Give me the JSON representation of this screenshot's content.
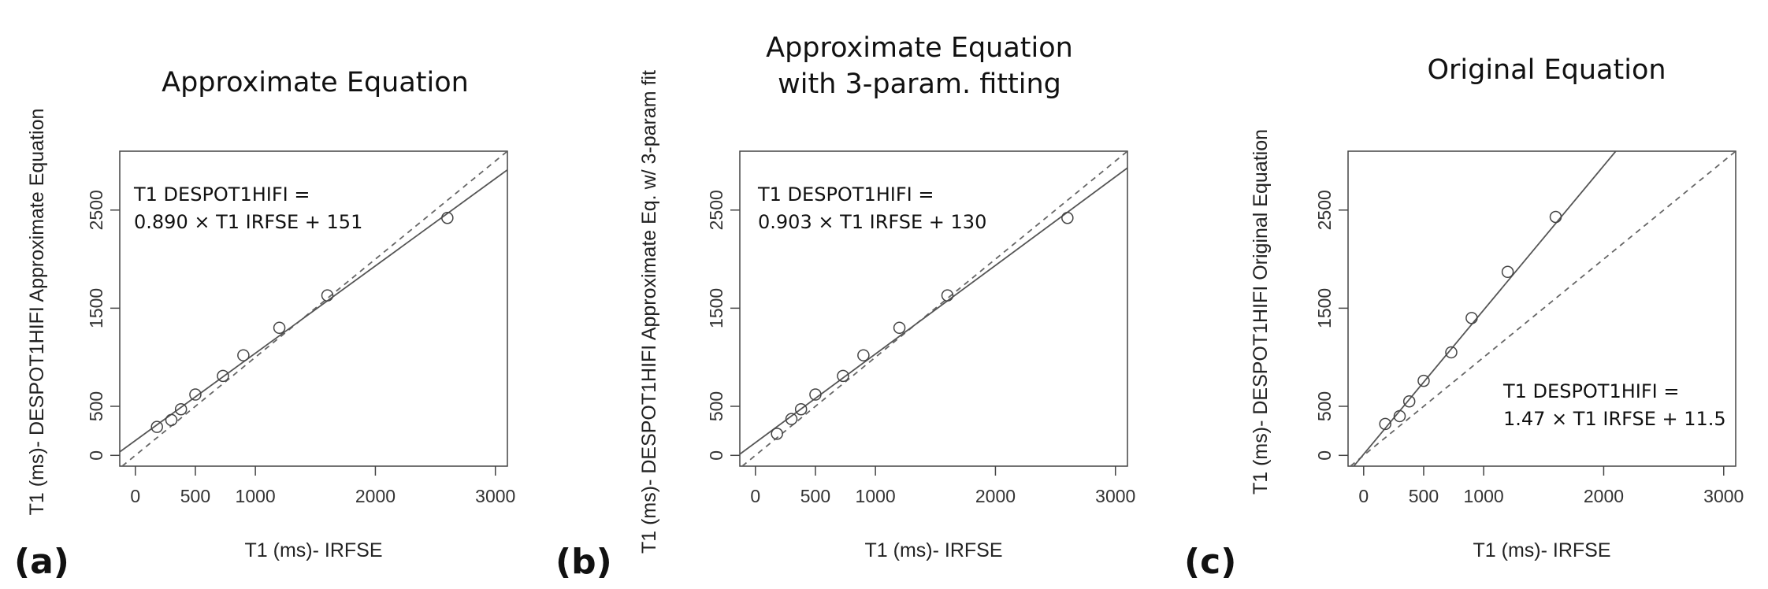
{
  "chart_data": [
    {
      "type": "scatter",
      "panel_label": "(a)",
      "title_lines": [
        "Approximate Equation"
      ],
      "xlabel": "T1 (ms)- IRFSE",
      "ylabel": "T1 (ms)- DESPOT1HIFI Approximate Equation",
      "xlim": [
        -130,
        3100
      ],
      "ylim": [
        -110,
        3100
      ],
      "xticks": [
        0,
        500,
        1000,
        2000,
        3000
      ],
      "yticks": [
        0,
        500,
        1500,
        2500
      ],
      "xtick_labels": [
        "0",
        "500",
        "1000",
        "2000",
        "3000"
      ],
      "ytick_labels": [
        "0",
        "500",
        "1500",
        "2500"
      ],
      "points": [
        [
          180,
          290
        ],
        [
          300,
          360
        ],
        [
          380,
          470
        ],
        [
          500,
          620
        ],
        [
          730,
          810
        ],
        [
          900,
          1020
        ],
        [
          1200,
          1300
        ],
        [
          1600,
          1630
        ],
        [
          2600,
          2420
        ]
      ],
      "fit": {
        "slope": 0.89,
        "intercept": 151
      },
      "identity_line": true,
      "annotation": {
        "lines": [
          "T1 DESPOT1HIFI  =",
          "0.890 × T1 IRFSE  + 151"
        ],
        "position": "top-left"
      }
    },
    {
      "type": "scatter",
      "panel_label": "(b)",
      "title_lines": [
        "Approximate Equation",
        "with 3-param. fitting"
      ],
      "xlabel": "T1 (ms)- IRFSE",
      "ylabel": "T1 (ms)- DESPOT1HIFI Approximate Eq. w/ 3-param fit",
      "xlim": [
        -130,
        3100
      ],
      "ylim": [
        -110,
        3100
      ],
      "xticks": [
        0,
        500,
        1000,
        2000,
        3000
      ],
      "yticks": [
        0,
        500,
        1500,
        2500
      ],
      "xtick_labels": [
        "0",
        "500",
        "1000",
        "2000",
        "3000"
      ],
      "ytick_labels": [
        "0",
        "500",
        "1500",
        "2500"
      ],
      "points": [
        [
          180,
          220
        ],
        [
          300,
          370
        ],
        [
          380,
          470
        ],
        [
          500,
          620
        ],
        [
          730,
          810
        ],
        [
          900,
          1020
        ],
        [
          1200,
          1300
        ],
        [
          1600,
          1630
        ],
        [
          2600,
          2420
        ]
      ],
      "fit": {
        "slope": 0.903,
        "intercept": 130
      },
      "identity_line": true,
      "annotation": {
        "lines": [
          "T1 DESPOT1HIFI  =",
          "0.903 × T1 IRFSE  + 130"
        ],
        "position": "top-left"
      }
    },
    {
      "type": "scatter",
      "panel_label": "(c)",
      "title_lines": [
        "Original Equation"
      ],
      "xlabel": "T1 (ms)- IRFSE",
      "ylabel": "T1 (ms)- DESPOT1HIFI Original Equation",
      "xlim": [
        -130,
        3100
      ],
      "ylim": [
        -110,
        3100
      ],
      "xticks": [
        0,
        500,
        1000,
        2000,
        3000
      ],
      "yticks": [
        0,
        500,
        1500,
        2500
      ],
      "xtick_labels": [
        "0",
        "500",
        "1000",
        "2000",
        "3000"
      ],
      "ytick_labels": [
        "0",
        "500",
        "1500",
        "2500"
      ],
      "points": [
        [
          180,
          320
        ],
        [
          300,
          400
        ],
        [
          380,
          550
        ],
        [
          500,
          760
        ],
        [
          730,
          1050
        ],
        [
          900,
          1400
        ],
        [
          1200,
          1870
        ],
        [
          1600,
          2430
        ]
      ],
      "fit": {
        "slope": 1.47,
        "intercept": 11.5
      },
      "identity_line": true,
      "annotation": {
        "lines": [
          "T1 DESPOT1HIFI =",
          "1.47 × T1 IRFSE + 11.5"
        ],
        "position": "bottom-right"
      }
    }
  ]
}
